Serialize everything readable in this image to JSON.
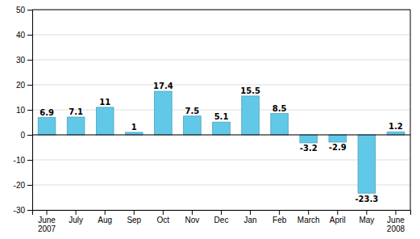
{
  "chart_data": {
    "type": "bar",
    "categories": [
      "June\n2007",
      "July",
      "Aug",
      "Sep",
      "Oct",
      "Nov",
      "Dec",
      "Jan",
      "Feb",
      "March",
      "April",
      "May",
      "June\n2008"
    ],
    "values": [
      6.9,
      7.1,
      11,
      1,
      17.4,
      7.5,
      5.1,
      15.5,
      8.5,
      -3.2,
      -2.9,
      -23.3,
      1.2
    ],
    "color": "#62C8E8",
    "ylim": [
      -30,
      50
    ],
    "yticks": [
      -30,
      -20,
      -10,
      0,
      10,
      20,
      30,
      40,
      50
    ],
    "grid": true,
    "data_labels": true
  }
}
